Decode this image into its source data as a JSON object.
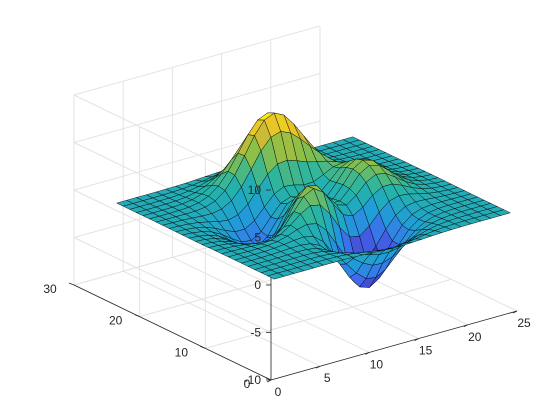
{
  "chart_data": {
    "type": "surface",
    "title": "",
    "xlabel": "",
    "ylabel": "",
    "zlabel": "",
    "function": "peaks(25)",
    "grid_size": 25,
    "xlim": [
      0,
      25
    ],
    "ylim": [
      0,
      30
    ],
    "zlim": [
      -10,
      10
    ],
    "x_ticks": [
      "0",
      "5",
      "10",
      "15",
      "20",
      "25"
    ],
    "y_ticks": [
      "0",
      "10",
      "20",
      "30"
    ],
    "z_ticks": [
      "-10",
      "-5",
      "0",
      "5",
      "10"
    ],
    "colormap": "parula",
    "colormap_stops": [
      "#3e26a8",
      "#4268f0",
      "#1f9ed8",
      "#25b4a6",
      "#8cbf48",
      "#e4b82e",
      "#f9fb0e"
    ],
    "edge_color": "#000000",
    "grid": true,
    "view": "3D"
  }
}
